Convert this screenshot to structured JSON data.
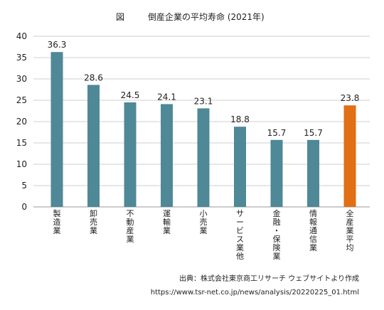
{
  "title_prefix": "図",
  "title": "倒産企業の平均寿命 (2021年)",
  "source_line": "出典：株式会社東京商工リサーチ ウェブサイトより作成",
  "source_url": "https://www.tsr-net.co.jp/news/analysis/20220225_01.html",
  "chart_data": {
    "type": "bar",
    "categories": [
      "製造業",
      "卸売業",
      "不動産業",
      "運輸業",
      "小売業",
      "サービス業他",
      "金融・保険業",
      "情報通信業",
      "全産業平均"
    ],
    "values": [
      36.3,
      28.6,
      24.5,
      24.1,
      23.1,
      18.8,
      15.7,
      15.7,
      23.8
    ],
    "value_labels": [
      "36.3",
      "28.6",
      "24.5",
      "24.1",
      "23.1",
      "18.8",
      "15.7",
      "15.7",
      "23.8"
    ],
    "ylim": [
      0,
      40
    ],
    "yticks": [
      "0",
      "5",
      "10",
      "15",
      "20",
      "25",
      "30",
      "35",
      "40"
    ],
    "grid": true,
    "colors": {
      "bar": "#4f8896",
      "highlight": "#e06f16",
      "grid": "#cfcfcf"
    },
    "highlight_index": 8
  }
}
